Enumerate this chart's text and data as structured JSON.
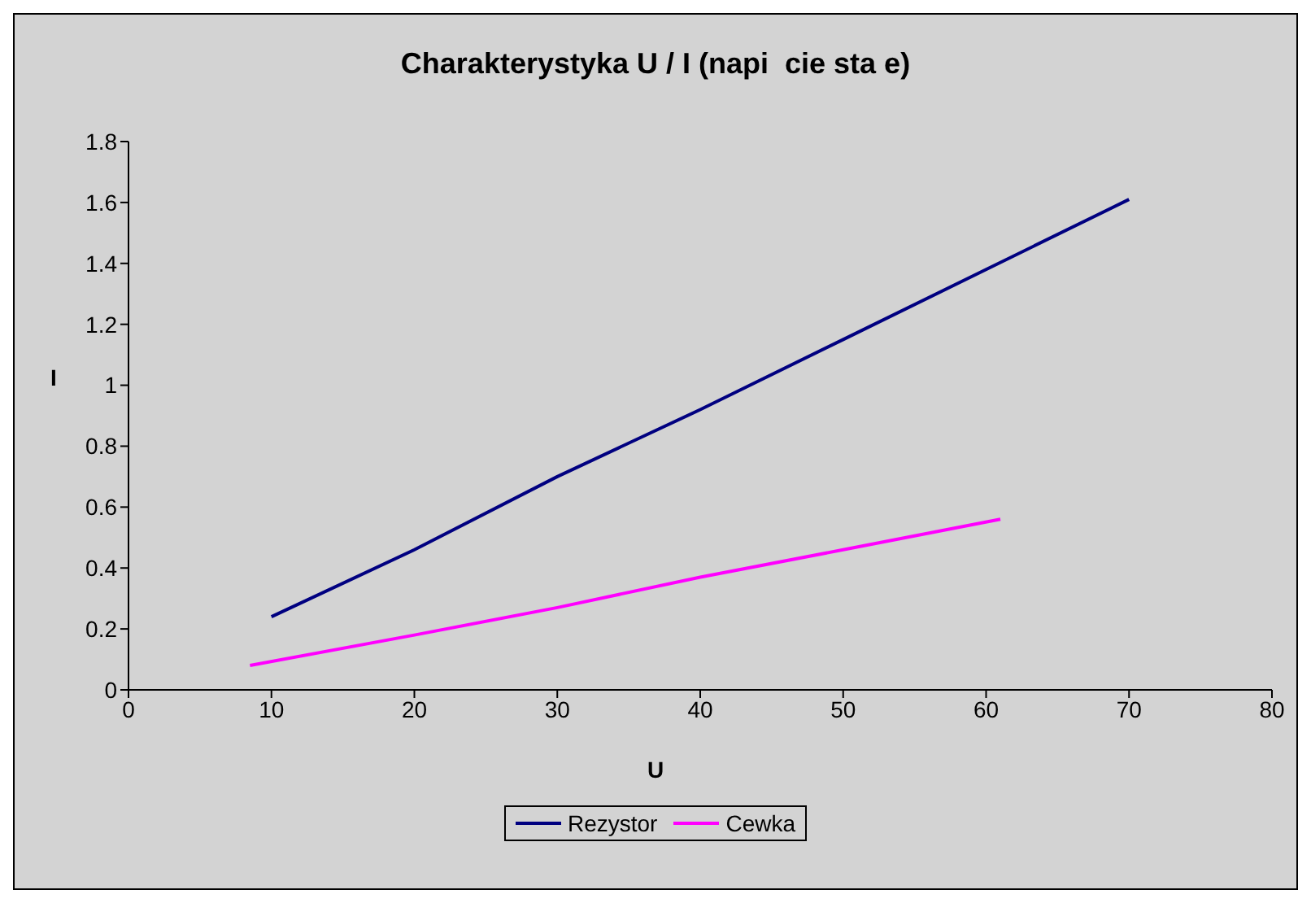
{
  "chart_data": {
    "type": "line",
    "title": "Charakterystyka U / I (napi  cie sta e)",
    "xlabel": "U",
    "ylabel": "I",
    "xlim": [
      0,
      80
    ],
    "xticks": [
      0,
      10,
      20,
      30,
      40,
      50,
      60,
      70,
      80
    ],
    "ylim": [
      0,
      1.8
    ],
    "yticks": [
      0,
      0.2,
      0.4,
      0.6,
      0.8,
      1,
      1.2,
      1.4,
      1.6,
      1.8
    ],
    "grid": false,
    "legend": "bottom",
    "marker": "none",
    "line_style": "solid",
    "series": [
      {
        "name": "Rezystor",
        "color": "#000080",
        "x": [
          10,
          20,
          30,
          40,
          50,
          60,
          70
        ],
        "values": [
          0.24,
          0.46,
          0.7,
          0.92,
          1.15,
          1.38,
          1.61
        ]
      },
      {
        "name": "Cewka",
        "color": "#ff00ff",
        "x": [
          8.5,
          20,
          30,
          40,
          50,
          61
        ],
        "values": [
          0.08,
          0.18,
          0.27,
          0.37,
          0.46,
          0.56
        ]
      }
    ]
  }
}
